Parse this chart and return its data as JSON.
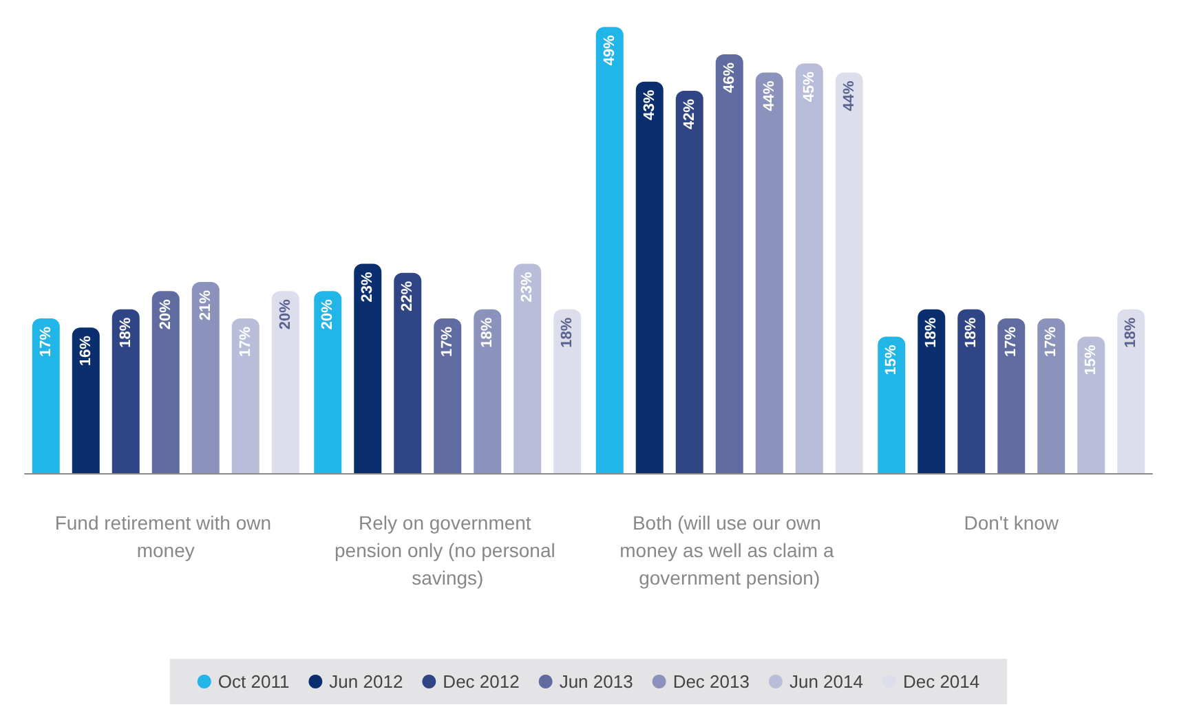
{
  "chart_data": {
    "type": "bar",
    "categories": [
      "Fund retirement with own money",
      "Rely on government pension only (no personal savings)",
      "Both (will use our own money as well as claim a government pension)",
      "Don't know"
    ],
    "series": [
      {
        "name": "Oct 2011",
        "color": "#22b5e8",
        "values": [
          17,
          20,
          49,
          15
        ],
        "value_labels": [
          "17%",
          "20%",
          "49%",
          "15%"
        ]
      },
      {
        "name": "Jun 2012",
        "color": "#0b2e6f",
        "values": [
          16,
          23,
          43,
          18
        ],
        "value_labels": [
          "16%",
          "23%",
          "43%",
          "18%"
        ]
      },
      {
        "name": "Dec 2012",
        "color": "#2f4586",
        "values": [
          18,
          22,
          42,
          18
        ],
        "value_labels": [
          "18%",
          "22%",
          "42%",
          "18%"
        ]
      },
      {
        "name": "Jun 2013",
        "color": "#5f6ba1",
        "values": [
          20,
          17,
          46,
          17
        ],
        "value_labels": [
          "20%",
          "17%",
          "46%",
          "17%"
        ]
      },
      {
        "name": "Dec 2013",
        "color": "#8b92bc",
        "values": [
          21,
          18,
          44,
          17
        ],
        "value_labels": [
          "21%",
          "18%",
          "44%",
          "17%"
        ]
      },
      {
        "name": "Jun 2014",
        "color": "#b9bdd9",
        "values": [
          17,
          23,
          45,
          15
        ],
        "value_labels": [
          "17%",
          "23%",
          "45%",
          "15%"
        ]
      },
      {
        "name": "Dec 2014",
        "color": "#dcdeec",
        "values": [
          20,
          18,
          44,
          18
        ],
        "value_labels": [
          "20%",
          "18%",
          "44%",
          "18%"
        ]
      }
    ],
    "legend": "bottom",
    "grid": false
  }
}
